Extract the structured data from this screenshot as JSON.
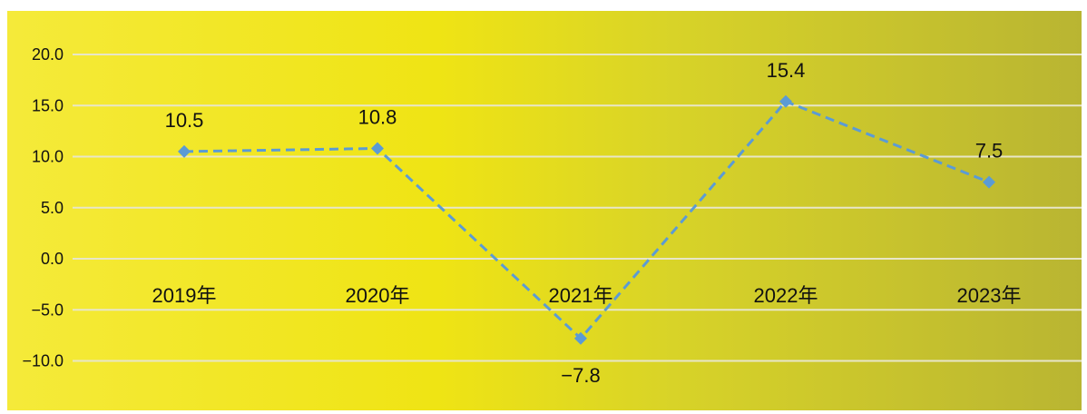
{
  "chart_data": {
    "type": "line",
    "categories": [
      "2019年",
      "2020年",
      "2021年",
      "2022年",
      "2023年"
    ],
    "series": [
      {
        "values": [
          10.5,
          10.8,
          -7.8,
          15.4,
          7.5
        ]
      }
    ],
    "data_labels": [
      "10.5",
      "10.8",
      "−7.8",
      "15.4",
      "7.5"
    ],
    "yticks": [
      "20.0",
      "15.0",
      "10.0",
      "5.0",
      "0.0",
      "−5.0",
      "−10.0"
    ],
    "ytick_values": [
      20,
      15,
      10,
      5,
      0,
      -5,
      -10
    ],
    "ylim": [
      -15,
      20
    ],
    "title": "",
    "xlabel": "",
    "ylabel": "",
    "grid": true,
    "legend": "none",
    "line_style": "dashed",
    "marker": "diamond",
    "colors": {
      "line": "#5b9bd5",
      "grid": "#e8e6c8",
      "text": "#111111"
    }
  }
}
